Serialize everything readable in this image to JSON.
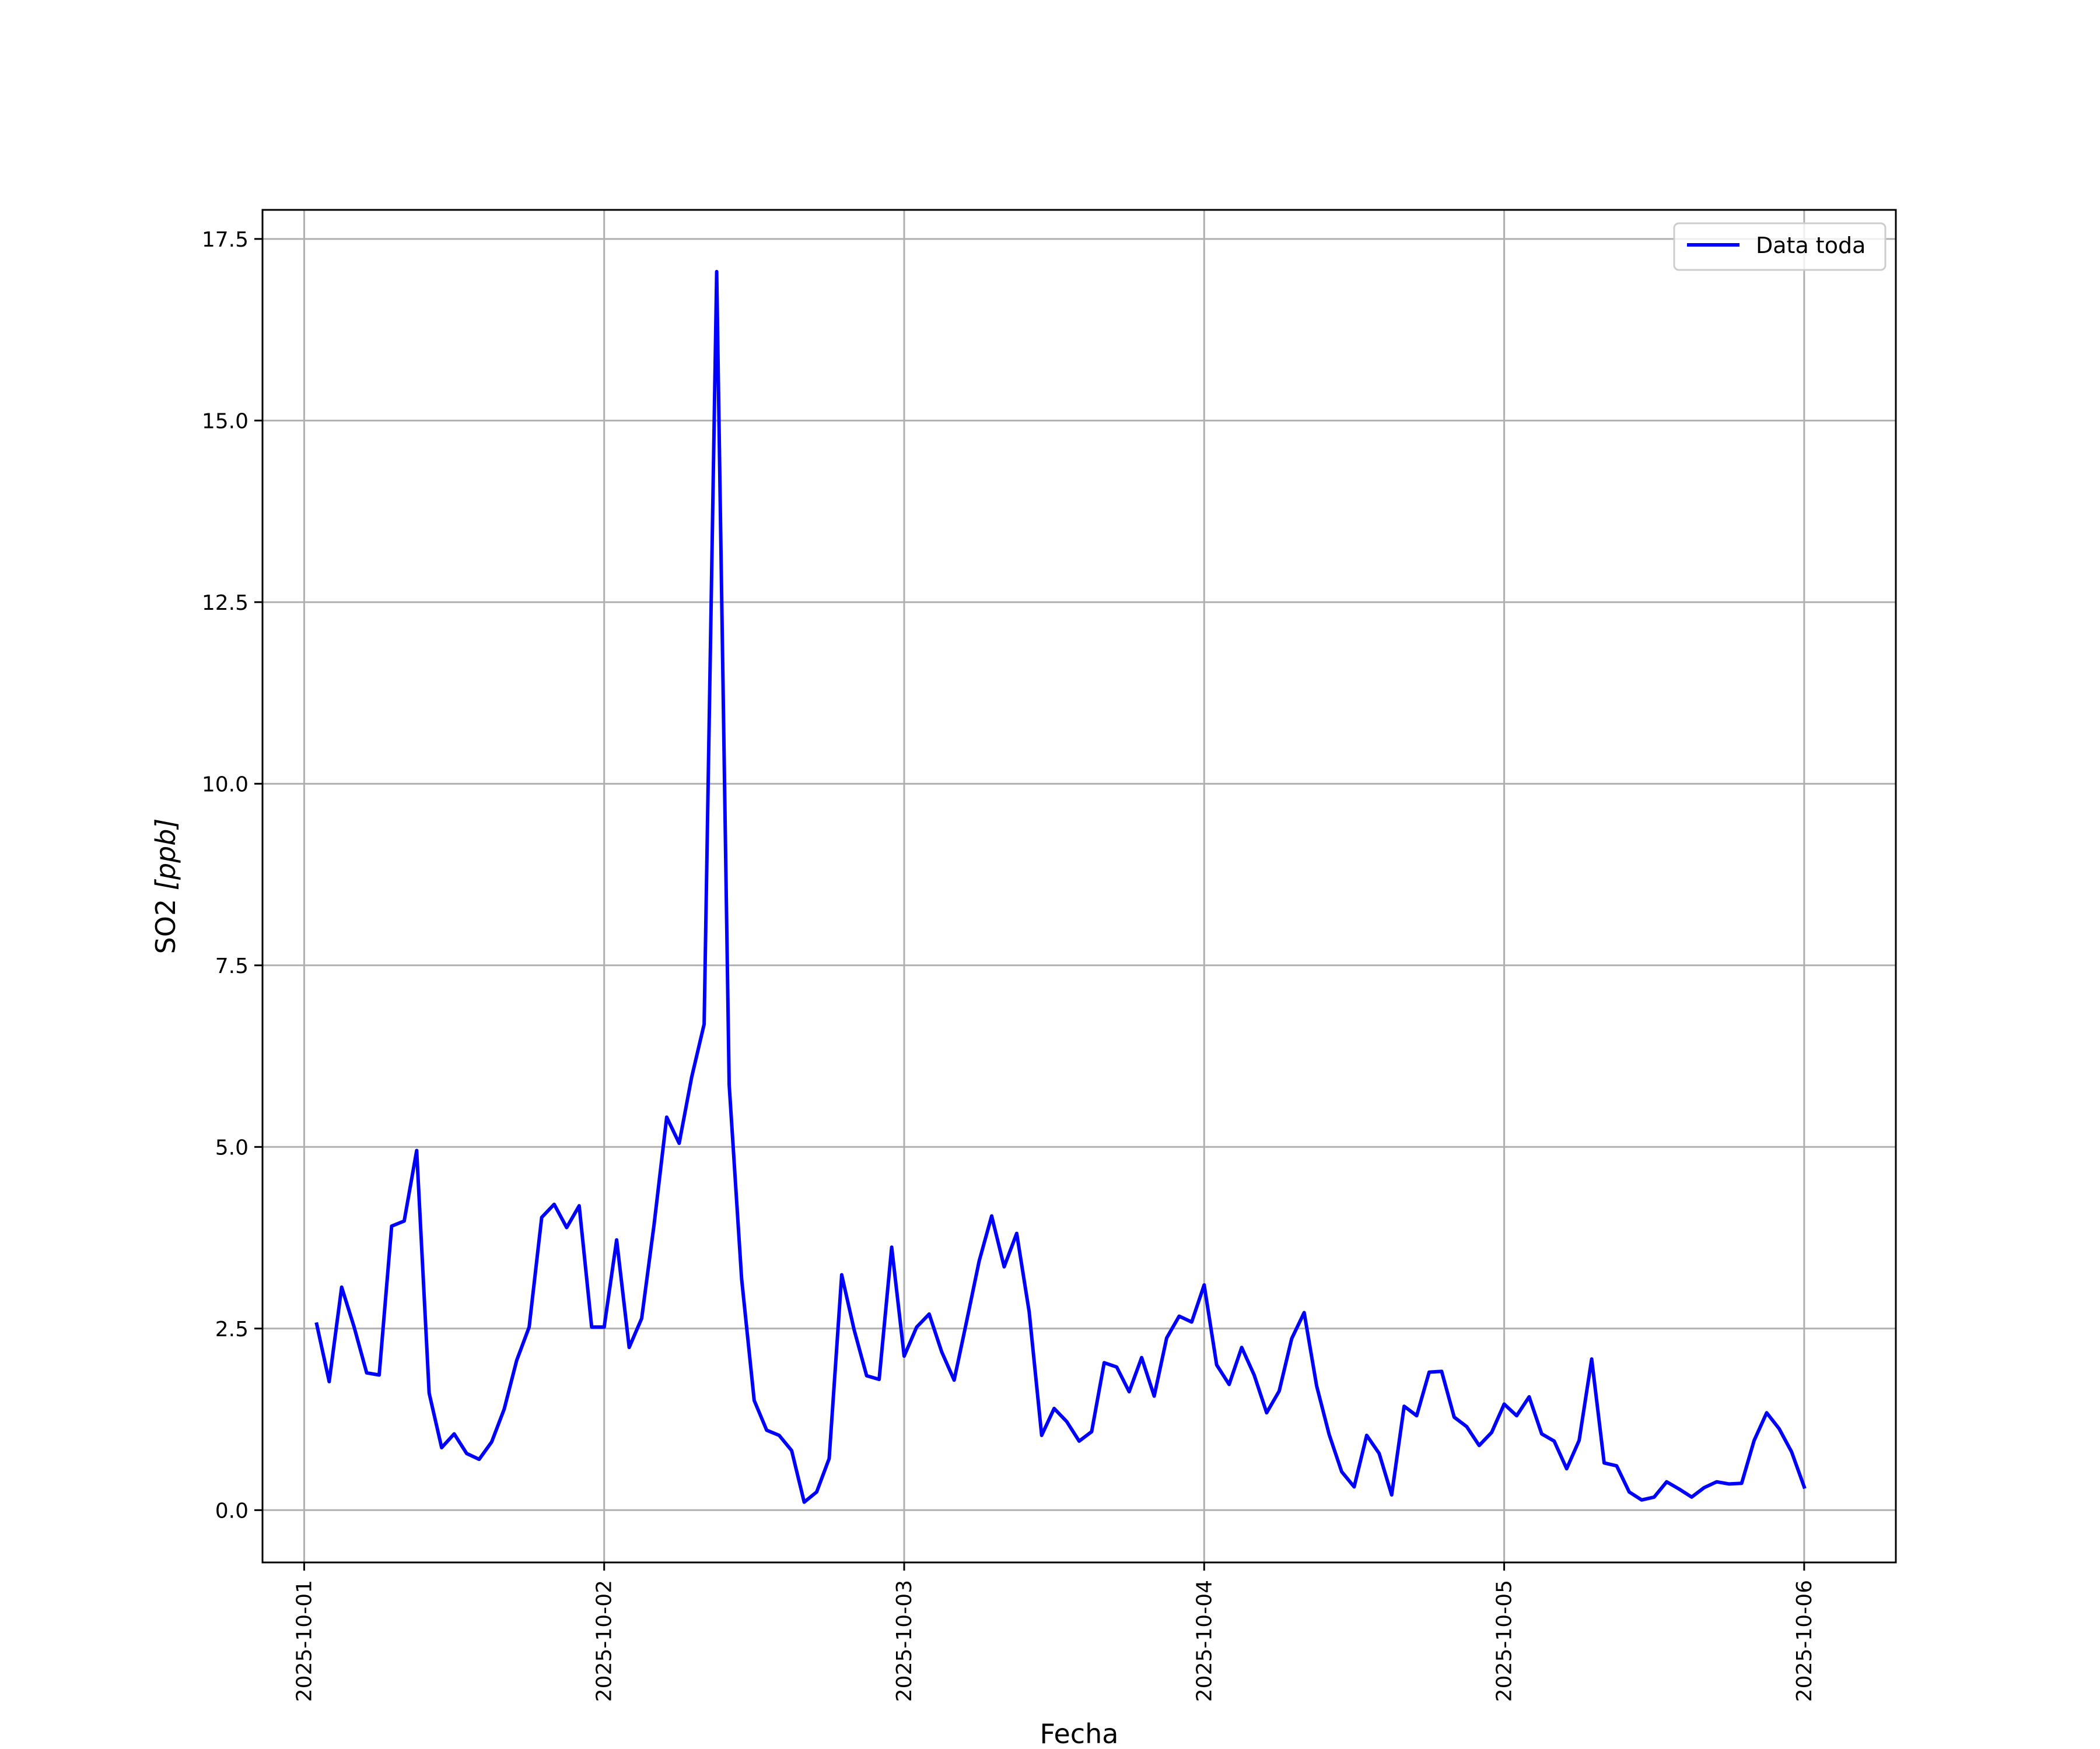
{
  "chart_data": {
    "type": "line",
    "title": "",
    "xlabel": "Fecha",
    "ylabel_main": "SO2 ",
    "ylabel_unit": "[ppb]",
    "x_ticks": [
      "2025-10-01",
      "2025-10-02",
      "2025-10-03",
      "2025-10-04",
      "2025-10-05",
      "2025-10-06"
    ],
    "y_ticks": [
      "0.0",
      "2.5",
      "5.0",
      "7.5",
      "10.0",
      "12.5",
      "15.0",
      "17.5"
    ],
    "xlim": [
      "2025-09-30 20:40",
      "2025-10-06 07:20"
    ],
    "ylim": [
      -0.72,
      17.9
    ],
    "grid": true,
    "legend_position": "top-right",
    "series": [
      {
        "name": "Data toda",
        "color": "#0000ff",
        "points": [
          [
            "2025-10-01 01:00",
            2.56
          ],
          [
            "2025-10-01 02:00",
            1.77
          ],
          [
            "2025-10-01 03:00",
            3.07
          ],
          [
            "2025-10-01 04:00",
            2.52
          ],
          [
            "2025-10-01 05:00",
            1.89
          ],
          [
            "2025-10-01 06:00",
            1.86
          ],
          [
            "2025-10-01 07:00",
            3.91
          ],
          [
            "2025-10-01 08:00",
            3.98
          ],
          [
            "2025-10-01 09:00",
            4.95
          ],
          [
            "2025-10-01 10:00",
            1.61
          ],
          [
            "2025-10-01 11:00",
            0.86
          ],
          [
            "2025-10-01 12:00",
            1.05
          ],
          [
            "2025-10-01 13:00",
            0.78
          ],
          [
            "2025-10-01 14:00",
            0.7
          ],
          [
            "2025-10-01 15:00",
            0.94
          ],
          [
            "2025-10-01 16:00",
            1.39
          ],
          [
            "2025-10-01 17:00",
            2.06
          ],
          [
            "2025-10-01 18:00",
            2.52
          ],
          [
            "2025-10-01 19:00",
            4.03
          ],
          [
            "2025-10-01 20:00",
            4.21
          ],
          [
            "2025-10-01 21:00",
            3.89
          ],
          [
            "2025-10-01 22:00",
            4.19
          ],
          [
            "2025-10-01 23:00",
            2.52
          ],
          [
            "2025-10-02 00:00",
            2.52
          ],
          [
            "2025-10-02 01:00",
            3.72
          ],
          [
            "2025-10-02 02:00",
            2.24
          ],
          [
            "2025-10-02 03:00",
            2.64
          ],
          [
            "2025-10-02 04:00",
            3.94
          ],
          [
            "2025-10-02 05:00",
            5.41
          ],
          [
            "2025-10-02 06:00",
            5.05
          ],
          [
            "2025-10-02 07:00",
            5.96
          ],
          [
            "2025-10-02 08:00",
            6.69
          ],
          [
            "2025-10-02 09:00",
            17.05
          ],
          [
            "2025-10-02 10:00",
            5.86
          ],
          [
            "2025-10-02 11:00",
            3.18
          ],
          [
            "2025-10-02 12:00",
            1.51
          ],
          [
            "2025-10-02 13:00",
            1.1
          ],
          [
            "2025-10-02 14:00",
            1.03
          ],
          [
            "2025-10-02 15:00",
            0.82
          ],
          [
            "2025-10-02 16:00",
            0.11
          ],
          [
            "2025-10-02 17:00",
            0.25
          ],
          [
            "2025-10-02 18:00",
            0.71
          ],
          [
            "2025-10-02 19:00",
            3.24
          ],
          [
            "2025-10-02 20:00",
            2.48
          ],
          [
            "2025-10-02 21:00",
            1.85
          ],
          [
            "2025-10-02 22:00",
            1.8
          ],
          [
            "2025-10-02 23:00",
            3.62
          ],
          [
            "2025-10-03 00:00",
            2.12
          ],
          [
            "2025-10-03 01:00",
            2.52
          ],
          [
            "2025-10-03 02:00",
            2.7
          ],
          [
            "2025-10-03 03:00",
            2.18
          ],
          [
            "2025-10-03 04:00",
            1.79
          ],
          [
            "2025-10-03 05:00",
            2.6
          ],
          [
            "2025-10-03 06:00",
            3.43
          ],
          [
            "2025-10-03 07:00",
            4.05
          ],
          [
            "2025-10-03 08:00",
            3.35
          ],
          [
            "2025-10-03 09:00",
            3.81
          ],
          [
            "2025-10-03 10:00",
            2.73
          ],
          [
            "2025-10-03 11:00",
            1.03
          ],
          [
            "2025-10-03 12:00",
            1.4
          ],
          [
            "2025-10-03 13:00",
            1.22
          ],
          [
            "2025-10-03 14:00",
            0.95
          ],
          [
            "2025-10-03 15:00",
            1.08
          ],
          [
            "2025-10-03 16:00",
            2.03
          ],
          [
            "2025-10-03 17:00",
            1.97
          ],
          [
            "2025-10-03 18:00",
            1.63
          ],
          [
            "2025-10-03 19:00",
            2.1
          ],
          [
            "2025-10-03 20:00",
            1.57
          ],
          [
            "2025-10-03 21:00",
            2.37
          ],
          [
            "2025-10-03 22:00",
            2.67
          ],
          [
            "2025-10-03 23:00",
            2.59
          ],
          [
            "2025-10-04 00:00",
            3.1
          ],
          [
            "2025-10-04 01:00",
            2.0
          ],
          [
            "2025-10-04 02:00",
            1.73
          ],
          [
            "2025-10-04 03:00",
            2.24
          ],
          [
            "2025-10-04 04:00",
            1.86
          ],
          [
            "2025-10-04 05:00",
            1.34
          ],
          [
            "2025-10-04 06:00",
            1.64
          ],
          [
            "2025-10-04 07:00",
            2.36
          ],
          [
            "2025-10-04 08:00",
            2.72
          ],
          [
            "2025-10-04 09:00",
            1.71
          ],
          [
            "2025-10-04 10:00",
            1.04
          ],
          [
            "2025-10-04 11:00",
            0.53
          ],
          [
            "2025-10-04 12:00",
            0.32
          ],
          [
            "2025-10-04 13:00",
            1.03
          ],
          [
            "2025-10-04 14:00",
            0.78
          ],
          [
            "2025-10-04 15:00",
            0.21
          ],
          [
            "2025-10-04 16:00",
            1.43
          ],
          [
            "2025-10-04 17:00",
            1.3
          ],
          [
            "2025-10-04 18:00",
            1.9
          ],
          [
            "2025-10-04 19:00",
            1.91
          ],
          [
            "2025-10-04 20:00",
            1.28
          ],
          [
            "2025-10-04 21:00",
            1.15
          ],
          [
            "2025-10-04 22:00",
            0.89
          ],
          [
            "2025-10-04 23:00",
            1.07
          ],
          [
            "2025-10-05 00:00",
            1.46
          ],
          [
            "2025-10-05 01:00",
            1.3
          ],
          [
            "2025-10-05 02:00",
            1.56
          ],
          [
            "2025-10-05 03:00",
            1.05
          ],
          [
            "2025-10-05 04:00",
            0.95
          ],
          [
            "2025-10-05 05:00",
            0.57
          ],
          [
            "2025-10-05 06:00",
            0.96
          ],
          [
            "2025-10-05 07:00",
            2.08
          ],
          [
            "2025-10-05 08:00",
            0.65
          ],
          [
            "2025-10-05 09:00",
            0.61
          ],
          [
            "2025-10-05 10:00",
            0.25
          ],
          [
            "2025-10-05 11:00",
            0.14
          ],
          [
            "2025-10-05 12:00",
            0.18
          ],
          [
            "2025-10-05 13:00",
            0.39
          ],
          [
            "2025-10-05 14:00",
            0.29
          ],
          [
            "2025-10-05 15:00",
            0.18
          ],
          [
            "2025-10-05 16:00",
            0.31
          ],
          [
            "2025-10-05 17:00",
            0.39
          ],
          [
            "2025-10-05 18:00",
            0.36
          ],
          [
            "2025-10-05 19:00",
            0.37
          ],
          [
            "2025-10-05 20:00",
            0.96
          ],
          [
            "2025-10-05 21:00",
            1.34
          ],
          [
            "2025-10-05 22:00",
            1.12
          ],
          [
            "2025-10-05 23:00",
            0.8
          ],
          [
            "2025-10-06 00:00",
            0.32
          ]
        ]
      }
    ]
  }
}
